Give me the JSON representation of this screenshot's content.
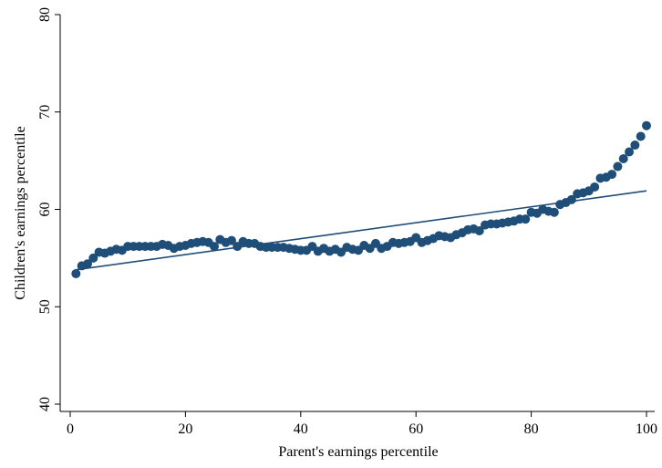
{
  "chart_data": {
    "type": "scatter",
    "xlabel": "Parent's earnings percentile",
    "ylabel": "Children's earnings percentile",
    "xlim": [
      0,
      100
    ],
    "ylim": [
      40,
      80
    ],
    "xticks": [
      0,
      20,
      40,
      60,
      80,
      100
    ],
    "yticks": [
      40,
      50,
      60,
      70,
      80
    ],
    "grid": false,
    "marker_color": "#1f4e79",
    "line_color": "#1f4e79",
    "series": [
      {
        "kind": "points",
        "x": [
          1,
          2,
          3,
          4,
          5,
          6,
          7,
          8,
          9,
          10,
          11,
          12,
          13,
          14,
          15,
          16,
          17,
          18,
          19,
          20,
          21,
          22,
          23,
          24,
          25,
          26,
          27,
          28,
          29,
          30,
          31,
          32,
          33,
          34,
          35,
          36,
          37,
          38,
          39,
          40,
          41,
          42,
          43,
          44,
          45,
          46,
          47,
          48,
          49,
          50,
          51,
          52,
          53,
          54,
          55,
          56,
          57,
          58,
          59,
          60,
          61,
          62,
          63,
          64,
          65,
          66,
          67,
          68,
          69,
          70,
          71,
          72,
          73,
          74,
          75,
          76,
          77,
          78,
          79,
          80,
          81,
          82,
          83,
          84,
          85,
          86,
          87,
          88,
          89,
          90,
          91,
          92,
          93,
          94,
          95,
          96,
          97,
          98,
          99,
          100
        ],
        "y": [
          53.4,
          54.2,
          54.4,
          55.0,
          55.6,
          55.5,
          55.7,
          55.9,
          55.8,
          56.2,
          56.2,
          56.2,
          56.2,
          56.2,
          56.2,
          56.4,
          56.3,
          56.0,
          56.2,
          56.3,
          56.5,
          56.6,
          56.7,
          56.6,
          56.2,
          56.9,
          56.6,
          56.8,
          56.2,
          56.7,
          56.5,
          56.5,
          56.2,
          56.1,
          56.1,
          56.1,
          56.1,
          56.0,
          55.9,
          55.8,
          55.8,
          56.2,
          55.7,
          56.0,
          55.7,
          55.9,
          55.6,
          56.1,
          55.9,
          55.8,
          56.3,
          56.0,
          56.5,
          56.0,
          56.2,
          56.6,
          56.5,
          56.6,
          56.7,
          57.1,
          56.6,
          56.8,
          57.0,
          57.3,
          57.2,
          57.1,
          57.4,
          57.6,
          57.9,
          58.0,
          57.8,
          58.4,
          58.5,
          58.5,
          58.6,
          58.7,
          58.8,
          59.0,
          59.0,
          59.7,
          59.6,
          60.0,
          59.8,
          59.7,
          60.5,
          60.7,
          61.0,
          61.6,
          61.7,
          61.9,
          62.3,
          63.2,
          63.3,
          63.6,
          64.4,
          65.2,
          65.9,
          66.6,
          67.5,
          68.6
        ]
      },
      {
        "kind": "fit-line",
        "x": [
          1,
          100
        ],
        "y": [
          53.8,
          61.9
        ]
      }
    ]
  }
}
